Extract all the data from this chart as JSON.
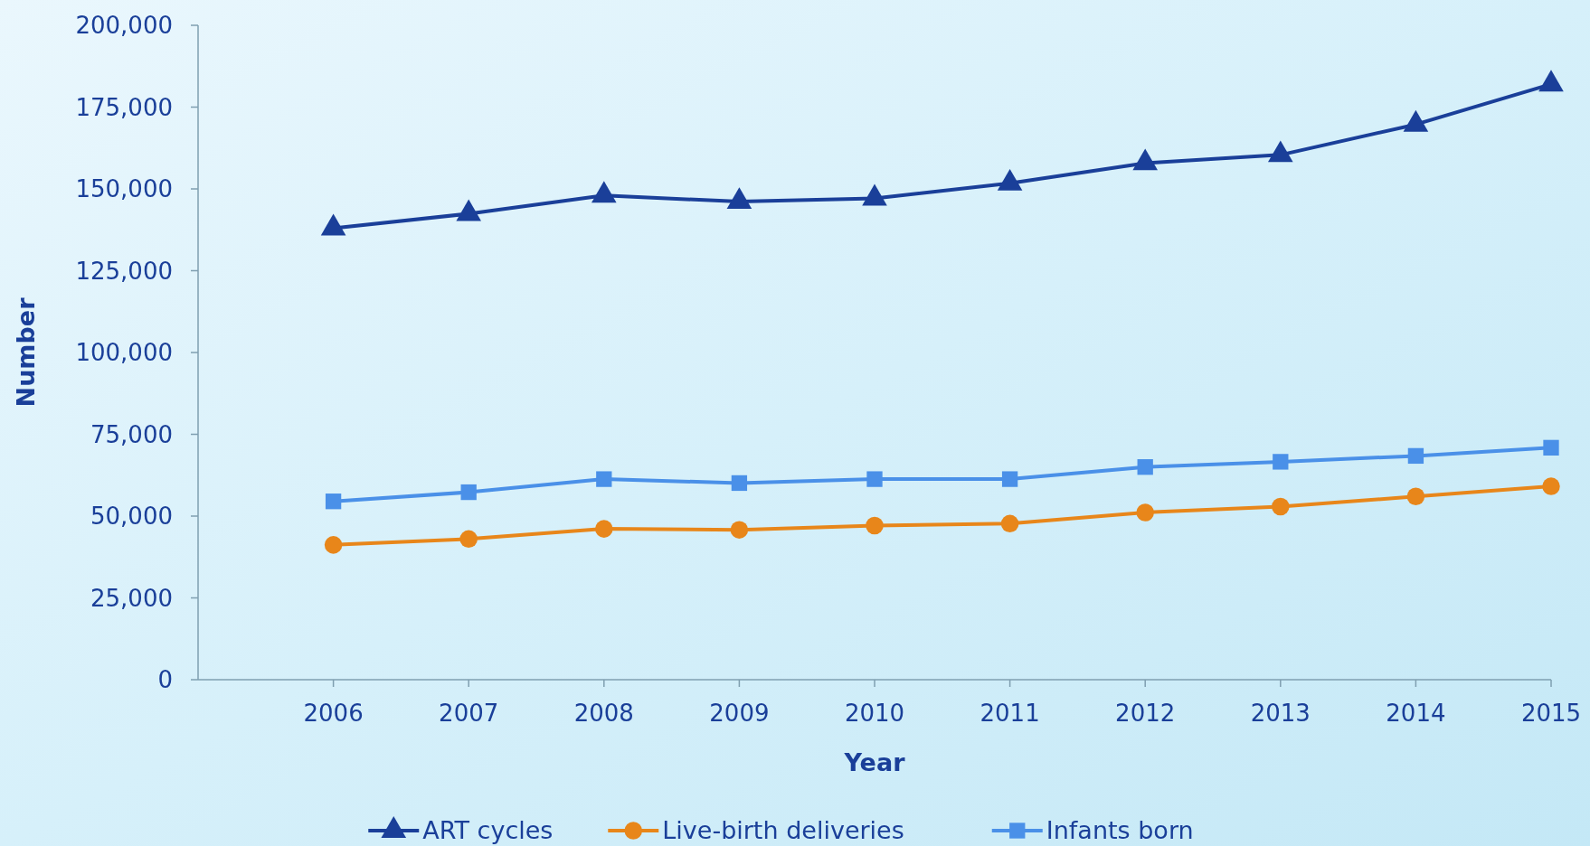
{
  "chart_data": {
    "type": "line",
    "xlabel": "Year",
    "ylabel": "Number",
    "categories": [
      "2006",
      "2007",
      "2008",
      "2009",
      "2010",
      "2011",
      "2012",
      "2013",
      "2014",
      "2015"
    ],
    "ylim": [
      0,
      200000
    ],
    "yticks": [
      {
        "value": 0,
        "label": "0"
      },
      {
        "value": 25000,
        "label": "25,000"
      },
      {
        "value": 50000,
        "label": "50,000"
      },
      {
        "value": 75000,
        "label": "75,000"
      },
      {
        "value": 100000,
        "label": "100,000"
      },
      {
        "value": 125000,
        "label": "125,000"
      },
      {
        "value": 150000,
        "label": "150,000"
      },
      {
        "value": 175000,
        "label": "175,000"
      },
      {
        "value": 200000,
        "label": "200,000"
      }
    ],
    "grid": false,
    "legend": "bottom",
    "series": [
      {
        "name": "ART cycles",
        "color": "#1a3f99",
        "marker": "triangle",
        "values": [
          138000,
          142400,
          148000,
          146100,
          147100,
          151700,
          157900,
          160400,
          169700,
          182000
        ]
      },
      {
        "name": "Live-birth deliveries",
        "color": "#e8861a",
        "marker": "circle",
        "values": [
          41200,
          43000,
          46100,
          45800,
          47100,
          47700,
          51100,
          52900,
          56000,
          59100
        ]
      },
      {
        "name": "Infants born",
        "color": "#4a90e8",
        "marker": "square",
        "values": [
          54500,
          57300,
          61300,
          60100,
          61300,
          61300,
          65000,
          66600,
          68400,
          70900
        ]
      }
    ]
  }
}
